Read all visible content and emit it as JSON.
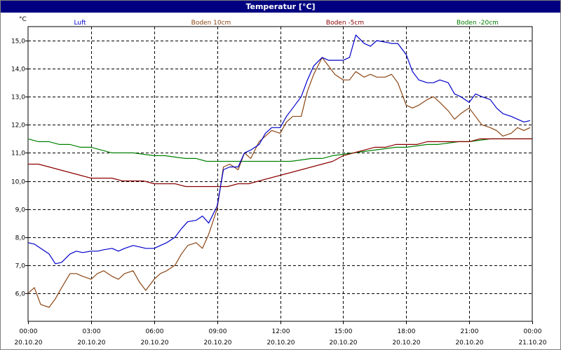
{
  "window": {
    "title": "Temperatur [°C]"
  },
  "colors": {
    "luft": "#0000cc",
    "boden10": "#8b4513",
    "boden5": "#8b0000",
    "boden20": "#008000",
    "grid": "#000000"
  },
  "chart_data": {
    "type": "line",
    "title": "Temperatur [°C]",
    "ylabel": "°C",
    "xlabel": "",
    "ylim": [
      5.0,
      15.5
    ],
    "xlim": [
      0,
      24
    ],
    "grid": true,
    "legend_placement": "top",
    "y_ticks": [
      "15,0",
      "14,0",
      "13,0",
      "12,0",
      "11,0",
      "10,0",
      "9,0",
      "8,0",
      "7,0",
      "6,0"
    ],
    "y_tick_values": [
      15,
      14,
      13,
      12,
      11,
      10,
      9,
      8,
      7,
      6
    ],
    "x_ticks": [
      {
        "time": "00:00",
        "date": "20.10.20",
        "hour": 0
      },
      {
        "time": "03:00",
        "date": "20.10.20",
        "hour": 3
      },
      {
        "time": "06:00",
        "date": "20.10.20",
        "hour": 6
      },
      {
        "time": "09:00",
        "date": "20.10.20",
        "hour": 9
      },
      {
        "time": "12:00",
        "date": "20.10.20",
        "hour": 12
      },
      {
        "time": "15:00",
        "date": "20.10.20",
        "hour": 15
      },
      {
        "time": "18:00",
        "date": "20.10.20",
        "hour": 18
      },
      {
        "time": "21:00",
        "date": "20.10.20",
        "hour": 21
      },
      {
        "time": "00:00",
        "date": "21.10.20",
        "hour": 24
      }
    ],
    "series": [
      {
        "name": "Luft",
        "color": "#0000cc",
        "x": [
          0,
          0.3,
          0.6,
          1,
          1.3,
          1.6,
          2,
          2.3,
          2.6,
          3,
          3.3,
          3.6,
          4,
          4.3,
          4.6,
          5,
          5.3,
          5.6,
          6,
          6.3,
          6.6,
          7,
          7.3,
          7.6,
          8,
          8.3,
          8.6,
          9,
          9.3,
          9.6,
          10,
          10.3,
          10.6,
          11,
          11.3,
          11.6,
          12,
          12.3,
          12.6,
          13,
          13.3,
          13.6,
          14,
          14.3,
          14.6,
          15,
          15.3,
          15.6,
          16,
          16.3,
          16.6,
          17,
          17.3,
          17.6,
          18,
          18.3,
          18.6,
          19,
          19.3,
          19.6,
          20,
          20.3,
          20.6,
          21,
          21.3,
          21.6,
          22,
          22.3,
          22.6,
          23,
          23.3,
          23.6,
          23.9
        ],
        "values": [
          7.8,
          7.75,
          7.6,
          7.4,
          7.05,
          7.1,
          7.4,
          7.5,
          7.45,
          7.5,
          7.5,
          7.55,
          7.6,
          7.5,
          7.6,
          7.7,
          7.65,
          7.6,
          7.6,
          7.7,
          7.8,
          8.0,
          8.3,
          8.55,
          8.6,
          8.75,
          8.5,
          9.1,
          10.4,
          10.5,
          10.5,
          11.0,
          11.1,
          11.3,
          11.7,
          11.9,
          11.9,
          12.3,
          12.6,
          13.0,
          13.6,
          14.1,
          14.4,
          14.3,
          14.3,
          14.3,
          14.4,
          15.2,
          14.9,
          14.8,
          15.0,
          14.95,
          14.9,
          14.9,
          14.5,
          13.9,
          13.6,
          13.5,
          13.5,
          13.6,
          13.5,
          13.1,
          13.0,
          12.8,
          13.1,
          13.0,
          12.9,
          12.6,
          12.4,
          12.3,
          12.2,
          12.1,
          12.15
        ]
      },
      {
        "name": "Boden 10cm",
        "color": "#8b4513",
        "x": [
          0,
          0.3,
          0.6,
          1,
          1.3,
          1.6,
          2,
          2.3,
          2.6,
          3,
          3.3,
          3.6,
          4,
          4.3,
          4.6,
          5,
          5.3,
          5.6,
          6,
          6.3,
          6.6,
          7,
          7.3,
          7.6,
          8,
          8.3,
          8.6,
          9,
          9.3,
          9.6,
          10,
          10.3,
          10.6,
          11,
          11.3,
          11.6,
          12,
          12.3,
          12.6,
          13,
          13.3,
          13.6,
          14,
          14.3,
          14.6,
          15,
          15.3,
          15.6,
          16,
          16.3,
          16.6,
          17,
          17.3,
          17.6,
          18,
          18.3,
          18.6,
          19,
          19.3,
          19.6,
          20,
          20.3,
          20.6,
          21,
          21.3,
          21.6,
          22,
          22.3,
          22.6,
          23,
          23.3,
          23.6,
          23.9
        ],
        "values": [
          6.0,
          6.2,
          5.6,
          5.5,
          5.8,
          6.2,
          6.7,
          6.7,
          6.6,
          6.5,
          6.7,
          6.8,
          6.6,
          6.5,
          6.7,
          6.8,
          6.4,
          6.1,
          6.5,
          6.7,
          6.8,
          7.0,
          7.4,
          7.7,
          7.8,
          7.6,
          8.1,
          9.0,
          10.5,
          10.6,
          10.4,
          11.0,
          10.8,
          11.4,
          11.6,
          11.8,
          11.7,
          12.1,
          12.3,
          12.3,
          13.2,
          13.8,
          14.4,
          14.1,
          13.8,
          13.6,
          13.6,
          13.9,
          13.7,
          13.8,
          13.7,
          13.7,
          13.8,
          13.5,
          12.7,
          12.6,
          12.7,
          12.9,
          13.0,
          12.8,
          12.5,
          12.2,
          12.4,
          12.6,
          12.3,
          12.0,
          11.9,
          11.8,
          11.6,
          11.7,
          11.9,
          11.8,
          11.9
        ]
      },
      {
        "name": "Boden -5cm",
        "color": "#8b0000",
        "x": [
          0,
          0.5,
          1,
          1.5,
          2,
          2.5,
          3,
          3.5,
          4,
          4.5,
          5,
          5.5,
          6,
          6.5,
          7,
          7.5,
          8,
          8.5,
          9,
          9.5,
          10,
          10.5,
          11,
          11.5,
          12,
          12.5,
          13,
          13.5,
          14,
          14.5,
          15,
          15.5,
          16,
          16.5,
          17,
          17.5,
          18,
          18.5,
          19,
          19.5,
          20,
          20.5,
          21,
          21.5,
          22,
          22.5,
          23,
          23.5,
          24
        ],
        "values": [
          10.6,
          10.6,
          10.5,
          10.4,
          10.3,
          10.2,
          10.1,
          10.1,
          10.1,
          10.0,
          10.0,
          10.0,
          9.9,
          9.9,
          9.9,
          9.8,
          9.8,
          9.8,
          9.8,
          9.8,
          9.9,
          9.9,
          10.0,
          10.1,
          10.2,
          10.3,
          10.4,
          10.5,
          10.6,
          10.7,
          10.9,
          11.0,
          11.1,
          11.2,
          11.2,
          11.3,
          11.3,
          11.3,
          11.4,
          11.4,
          11.4,
          11.4,
          11.4,
          11.5,
          11.5,
          11.5,
          11.5,
          11.5,
          11.5
        ]
      },
      {
        "name": "Boden -20cm",
        "color": "#008000",
        "x": [
          0,
          0.5,
          1,
          1.5,
          2,
          2.5,
          3,
          3.5,
          4,
          4.5,
          5,
          5.5,
          6,
          6.5,
          7,
          7.5,
          8,
          8.5,
          9,
          9.5,
          10,
          10.5,
          11,
          11.5,
          12,
          12.5,
          13,
          13.5,
          14,
          14.5,
          15,
          15.5,
          16,
          16.5,
          17,
          17.5,
          18,
          18.5,
          19,
          19.5,
          20,
          20.5,
          21,
          21.5,
          22,
          22.5,
          23,
          23.5,
          24
        ],
        "values": [
          11.5,
          11.4,
          11.4,
          11.3,
          11.3,
          11.2,
          11.2,
          11.1,
          11.0,
          11.0,
          11.0,
          10.95,
          10.9,
          10.9,
          10.85,
          10.8,
          10.8,
          10.7,
          10.7,
          10.7,
          10.7,
          10.7,
          10.7,
          10.7,
          10.7,
          10.7,
          10.75,
          10.8,
          10.8,
          10.9,
          10.95,
          11.0,
          11.05,
          11.1,
          11.15,
          11.2,
          11.2,
          11.25,
          11.3,
          11.3,
          11.35,
          11.4,
          11.4,
          11.45,
          11.5,
          11.5,
          11.5,
          11.5,
          11.5
        ]
      }
    ]
  }
}
